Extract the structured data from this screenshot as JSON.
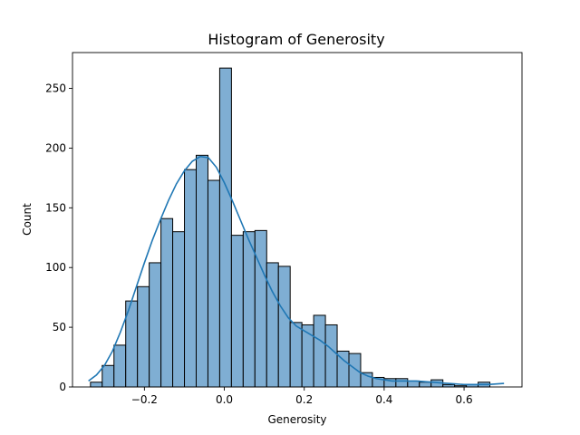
{
  "chart_data": {
    "type": "bar",
    "title": "Histogram of Generosity",
    "xlabel": "Generosity",
    "ylabel": "Count",
    "xlim": [
      -0.38,
      0.745
    ],
    "ylim": [
      0,
      280
    ],
    "x_ticks": [
      -0.2,
      0.0,
      0.2,
      0.4,
      0.6
    ],
    "x_tick_labels": [
      "−0.2",
      "0.0",
      "0.2",
      "0.4",
      "0.6"
    ],
    "y_ticks": [
      0,
      50,
      100,
      150,
      200,
      250
    ],
    "y_tick_labels": [
      "0",
      "50",
      "100",
      "150",
      "200",
      "250"
    ],
    "bin_width": 0.0294,
    "bin_edges_start": -0.335,
    "values": [
      4,
      18,
      35,
      72,
      84,
      104,
      141,
      130,
      182,
      194,
      173,
      267,
      127,
      130,
      131,
      104,
      101,
      54,
      52,
      60,
      52,
      30,
      28,
      12,
      8,
      7,
      7,
      5,
      4,
      6,
      2,
      1,
      2,
      4
    ],
    "kde": {
      "x": [
        -0.34,
        -0.32,
        -0.3,
        -0.28,
        -0.26,
        -0.24,
        -0.22,
        -0.2,
        -0.18,
        -0.16,
        -0.14,
        -0.12,
        -0.1,
        -0.08,
        -0.06,
        -0.04,
        -0.02,
        0.0,
        0.02,
        0.04,
        0.06,
        0.08,
        0.1,
        0.12,
        0.14,
        0.16,
        0.18,
        0.2,
        0.22,
        0.24,
        0.26,
        0.28,
        0.3,
        0.32,
        0.34,
        0.36,
        0.38,
        0.4,
        0.42,
        0.44,
        0.46,
        0.48,
        0.5,
        0.52,
        0.54,
        0.56,
        0.58,
        0.6,
        0.62,
        0.64,
        0.66,
        0.68,
        0.7
      ],
      "y": [
        5,
        10,
        18,
        30,
        46,
        64,
        84,
        104,
        123,
        140,
        156,
        170,
        181,
        189,
        193,
        192,
        184,
        171,
        156,
        140,
        124,
        109,
        94,
        80,
        68,
        58,
        51,
        47,
        43,
        39,
        34,
        28,
        22,
        17,
        12,
        9,
        7,
        6,
        5,
        5,
        5,
        5,
        4.5,
        4,
        3.5,
        3,
        2.5,
        2,
        2,
        2,
        2,
        2.5,
        3
      ]
    },
    "bar_color": "#7faed3",
    "bar_edge_color": "#000000",
    "kde_color": "#1f77b4",
    "grid": false,
    "legend": "none"
  }
}
